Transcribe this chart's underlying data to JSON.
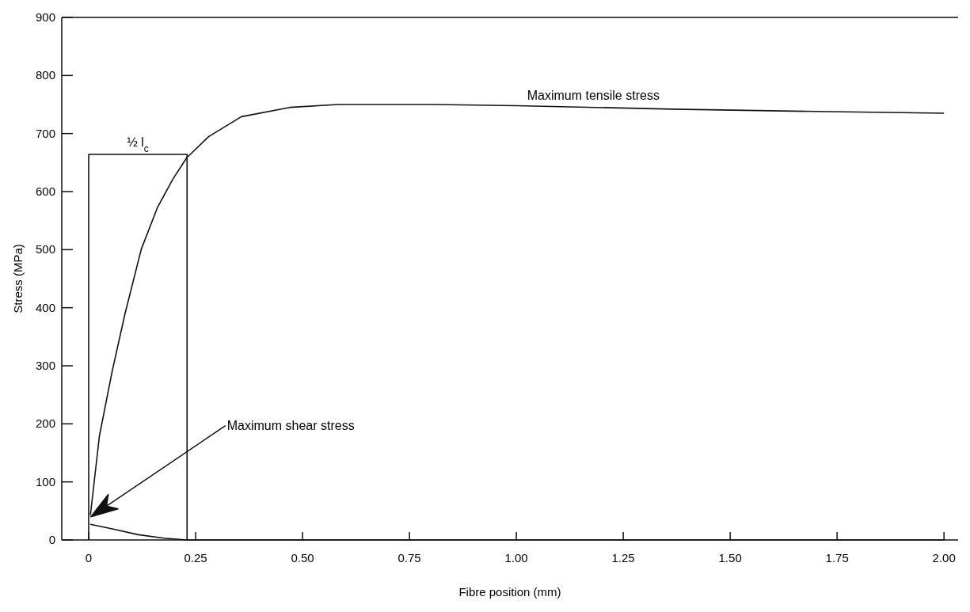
{
  "chart_data": {
    "type": "line",
    "xlabel": "Fibre position (mm)",
    "ylabel": "Stress (MPa)",
    "xlim": [
      -0.063,
      2.033
    ],
    "ylim": [
      0,
      900
    ],
    "xticks": [
      0,
      0.25,
      {
        "value": 0.5,
        "label": "0.50"
      },
      0.75,
      {
        "value": 1,
        "label": "1.00"
      },
      1.25,
      {
        "value": 1.5,
        "label": "1.50"
      },
      1.75,
      {
        "value": 2,
        "label": "2.00"
      }
    ],
    "yticks": [
      0,
      100,
      200,
      300,
      400,
      500,
      600,
      700,
      800,
      900
    ],
    "grid": false,
    "marker": "none",
    "line_style": "solid",
    "series": [
      {
        "color": "#111111",
        "x": [
          0.004,
          0.025,
          0.055,
          0.085,
          0.123,
          0.161,
          0.198,
          0.23,
          0.281,
          0.357,
          0.47,
          0.583,
          0.72,
          0.81,
          1.0,
          1.365,
          1.7,
          2.0
        ],
        "values": [
          43,
          179,
          291,
          390,
          501,
          573,
          623,
          659,
          695,
          729,
          745,
          750,
          750,
          750,
          748,
          742,
          738,
          735
        ]
      },
      {
        "color": "#111111",
        "x": [
          0.004,
          0.055,
          0.116,
          0.176,
          0.23,
          2.0
        ],
        "values": [
          27,
          19,
          9,
          3,
          0,
          0
        ]
      },
      {
        "color": "#111111",
        "x": [
          0,
          0,
          0.23,
          0.23
        ],
        "values": [
          0,
          664,
          664,
          0
        ]
      }
    ],
    "annotations": [
      {
        "text": "Maximum tensile stress",
        "x": 1.18,
        "y": 745
      },
      {
        "text": "Maximum shear stress",
        "x": 0.005,
        "y": 40
      },
      {
        "text": "½ l$_{c}$",
        "x": 0.115,
        "y": 664
      }
    ]
  }
}
